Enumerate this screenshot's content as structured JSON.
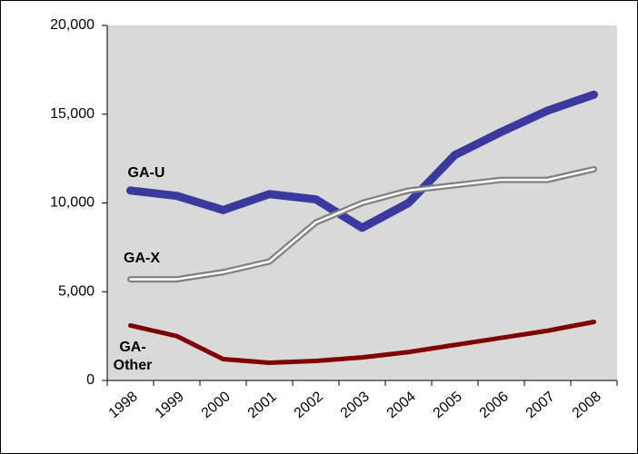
{
  "chart_data": {
    "type": "line",
    "categories": [
      "1998",
      "1999",
      "2000",
      "2001",
      "2002",
      "2003",
      "2004",
      "2005",
      "2006",
      "2007",
      "2008"
    ],
    "series": [
      {
        "name": "GA-U",
        "color": "#3a3a9e",
        "values": [
          10700,
          10400,
          9600,
          10500,
          10200,
          8600,
          10000,
          12700,
          14000,
          15200,
          16100
        ]
      },
      {
        "name": "GA-X",
        "color": "#808080",
        "values": [
          5700,
          5700,
          6100,
          6700,
          8900,
          10000,
          10700,
          11000,
          11300,
          11300,
          11900
        ]
      },
      {
        "name": "GA-Other",
        "color": "#7f0000",
        "values": [
          3100,
          2500,
          1200,
          1000,
          1100,
          1300,
          1600,
          2000,
          2400,
          2800,
          3300
        ]
      }
    ],
    "ylim": [
      0,
      20000
    ],
    "yticks": [
      {
        "value": 0,
        "label": "0"
      },
      {
        "value": 5000,
        "label": "5,000"
      },
      {
        "value": 10000,
        "label": "10,000"
      },
      {
        "value": 15000,
        "label": "15,000"
      },
      {
        "value": 20000,
        "label": "20,000"
      }
    ],
    "plot_background": "#d9d9d9"
  }
}
